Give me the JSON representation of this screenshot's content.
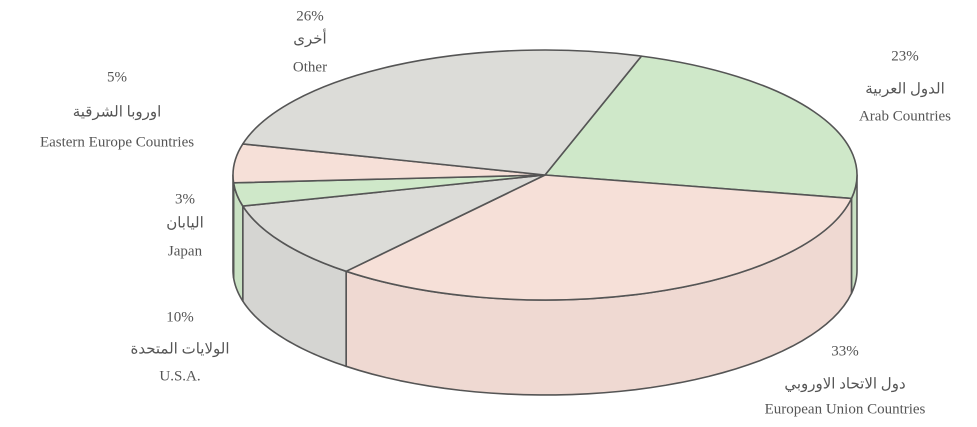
{
  "chart_data": {
    "type": "pie",
    "categories": [
      "Arab Countries",
      "European Union Countries",
      "U.S.A.",
      "Japan",
      "Eastern Europe Countries",
      "Other"
    ],
    "categories_ar": [
      "الدول العربية",
      "دول الاتحاد الاوروبي",
      "الولايات المتحدة",
      "اليابان",
      "اوروبا الشرقية",
      "أخرى"
    ],
    "values": [
      23,
      33,
      10,
      3,
      5,
      26
    ],
    "value_labels": [
      "23%",
      "33%",
      "10%",
      "3%",
      "5%",
      "26%"
    ],
    "colors": [
      "#cfe8c9",
      "#f6e0d8",
      "#dcdcd8",
      "#cfe8c9",
      "#f6e0d8",
      "#dcdcd8"
    ]
  }
}
